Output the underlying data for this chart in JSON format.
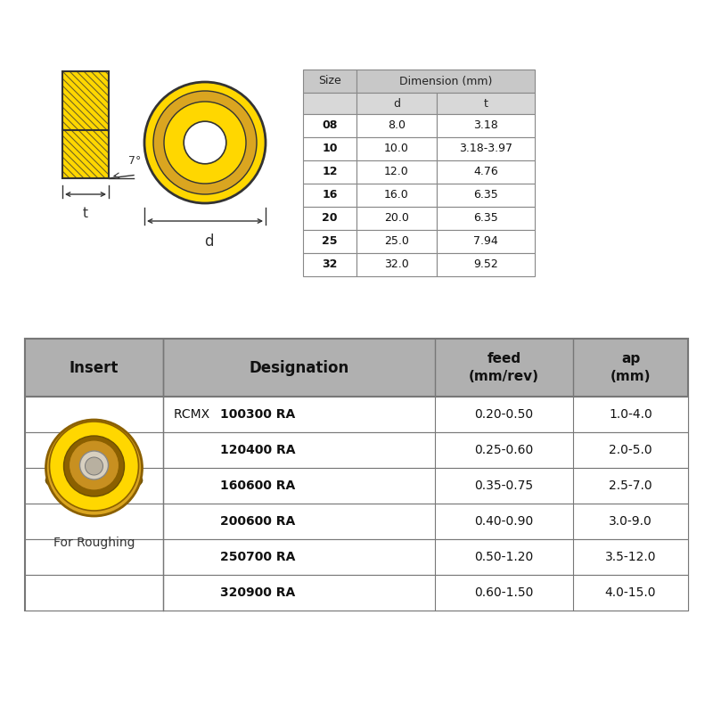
{
  "bg_color": "#ffffff",
  "top_table": {
    "rows": [
      [
        "08",
        "8.0",
        "3.18"
      ],
      [
        "10",
        "10.0",
        "3.18-3.97"
      ],
      [
        "12",
        "12.0",
        "4.76"
      ],
      [
        "16",
        "16.0",
        "6.35"
      ],
      [
        "20",
        "20.0",
        "6.35"
      ],
      [
        "25",
        "25.0",
        "7.94"
      ],
      [
        "32",
        "32.0",
        "9.52"
      ]
    ]
  },
  "bottom_table": {
    "prefix": "RCMX",
    "rows": [
      [
        "100300 RA",
        "0.20-0.50",
        "1.0-4.0"
      ],
      [
        "120400 RA",
        "0.25-0.60",
        "2.0-5.0"
      ],
      [
        "160600 RA",
        "0.35-0.75",
        "2.5-7.0"
      ],
      [
        "200600 RA",
        "0.40-0.90",
        "3.0-9.0"
      ],
      [
        "250700 RA",
        "0.50-1.20",
        "3.5-12.0"
      ],
      [
        "320900 RA",
        "0.60-1.50",
        "4.0-15.0"
      ]
    ],
    "insert_label": "For Roughing"
  },
  "angle_label": "7°",
  "dim_d_label": "d",
  "dim_t_label": "t",
  "yellow_bright": "#FFD700",
  "yellow_dark": "#C8960C",
  "yellow_mid": "#DAA520",
  "yellow_deep": "#8B6000",
  "border_dark": "#333333",
  "table_header_bg": "#c8c8c8",
  "table_subheader_bg": "#d8d8d8",
  "table_row_bg": "#ffffff",
  "bottom_header_bg": "#b0b0b0",
  "bottom_row_bg": "#e8e8e8"
}
